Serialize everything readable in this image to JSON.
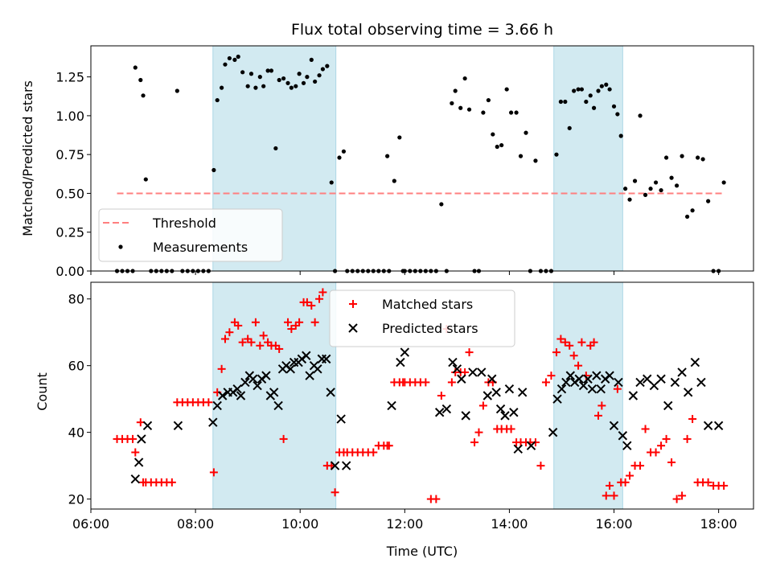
{
  "chart_data": [
    {
      "type": "scatter",
      "title": "Flux total observing time = 3.66 h",
      "xlabel": "",
      "ylabel": "Matched/Predicted stars",
      "xlim": [
        "06:00",
        "18:40"
      ],
      "ylim": [
        0,
        1.45
      ],
      "yticks": [
        "0.00",
        "0.25",
        "0.50",
        "0.75",
        "1.00",
        "1.25"
      ],
      "xticks": [
        "06:00",
        "08:00",
        "10:00",
        "12:00",
        "14:00",
        "16:00",
        "18:00"
      ],
      "show_xtick_labels": false,
      "shaded_intervals": [
        [
          "08:20",
          "10:41"
        ],
        [
          "14:51",
          "16:10"
        ]
      ],
      "shade_color": "#add8e6",
      "legend": {
        "position": "lower-left",
        "entries": [
          "Threshold",
          "Measurements"
        ]
      },
      "series": [
        {
          "name": "Threshold",
          "kind": "dashed-line",
          "color": "#ff7f7f",
          "x": [
            "06:30",
            "18:05"
          ],
          "y": [
            0.5,
            0.5
          ]
        },
        {
          "name": "Measurements",
          "kind": "dots",
          "color": "#000000",
          "x": [
            "06:30",
            "06:36",
            "06:42",
            "06:48",
            "06:51",
            "06:57",
            "07:00",
            "07:03",
            "07:09",
            "07:15",
            "07:21",
            "07:27",
            "07:33",
            "07:39",
            "07:45",
            "07:51",
            "07:57",
            "08:03",
            "08:09",
            "08:15",
            "08:21",
            "08:25",
            "08:30",
            "08:34",
            "08:39",
            "08:45",
            "08:49",
            "08:54",
            "09:00",
            "09:04",
            "09:09",
            "09:14",
            "09:18",
            "09:23",
            "09:27",
            "09:32",
            "09:36",
            "09:41",
            "09:46",
            "09:50",
            "09:55",
            "09:59",
            "10:04",
            "10:08",
            "10:13",
            "10:17",
            "10:22",
            "10:26",
            "10:31",
            "10:36",
            "10:40",
            "10:45",
            "10:50",
            "10:54",
            "11:00",
            "11:06",
            "11:12",
            "11:18",
            "11:24",
            "11:30",
            "11:36",
            "11:40",
            "11:42",
            "11:48",
            "11:54",
            "11:58",
            "12:00",
            "12:06",
            "12:12",
            "12:18",
            "12:24",
            "12:30",
            "12:36",
            "12:42",
            "12:48",
            "12:54",
            "12:58",
            "13:04",
            "13:09",
            "13:14",
            "13:20",
            "13:25",
            "13:30",
            "13:36",
            "13:41",
            "13:46",
            "13:51",
            "13:57",
            "14:02",
            "14:08",
            "14:13",
            "14:19",
            "14:24",
            "14:30",
            "14:36",
            "14:42",
            "14:48",
            "14:54",
            "14:59",
            "15:04",
            "15:09",
            "15:14",
            "15:19",
            "15:23",
            "15:28",
            "15:33",
            "15:37",
            "15:42",
            "15:46",
            "15:51",
            "15:55",
            "16:00",
            "16:04",
            "16:08",
            "16:13",
            "16:18",
            "16:24",
            "16:30",
            "16:36",
            "16:42",
            "16:48",
            "16:54",
            "17:00",
            "17:06",
            "17:12",
            "17:18",
            "17:24",
            "17:30",
            "17:36",
            "17:42",
            "17:48",
            "17:54",
            "18:00",
            "18:06"
          ],
          "y": [
            0,
            0,
            0,
            0,
            1.31,
            1.23,
            1.13,
            0.59,
            0,
            0,
            0,
            0,
            0,
            1.16,
            0,
            0,
            0,
            0,
            0,
            0,
            0.65,
            1.1,
            1.18,
            1.33,
            1.37,
            1.36,
            1.38,
            1.28,
            1.19,
            1.27,
            1.18,
            1.25,
            1.19,
            1.29,
            1.29,
            0.79,
            1.23,
            1.24,
            1.21,
            1.18,
            1.19,
            1.27,
            1.21,
            1.25,
            1.36,
            1.22,
            1.26,
            1.3,
            1.32,
            0.57,
            0,
            0.73,
            0.77,
            0,
            0,
            0,
            0,
            0,
            0,
            0,
            0,
            0.74,
            0,
            0.58,
            0.86,
            0,
            0,
            0,
            0,
            0,
            0,
            0,
            0,
            0.43,
            0,
            1.08,
            1.16,
            1.05,
            1.24,
            1.04,
            0,
            0,
            1.02,
            1.1,
            0.88,
            0.8,
            0.81,
            1.17,
            1.02,
            1.02,
            0.74,
            0.89,
            0,
            0.71,
            0,
            0,
            0,
            0.75,
            1.09,
            1.09,
            0.92,
            1.16,
            1.17,
            1.17,
            1.09,
            1.13,
            1.05,
            1.16,
            1.19,
            1.2,
            1.17,
            1.06,
            1.01,
            0.87,
            0.53,
            0.46,
            0.58,
            1.0,
            0.49,
            0.53,
            0.57,
            0.52,
            0.73,
            0.6,
            0.55,
            0.74,
            0.35,
            0.39,
            0.73,
            0.72,
            0.45,
            0,
            0,
            0.57
          ]
        }
      ]
    },
    {
      "type": "scatter",
      "title": "",
      "xlabel": "Time (UTC)",
      "ylabel": "Count",
      "xlim": [
        "06:00",
        "18:40"
      ],
      "ylim": [
        17,
        85
      ],
      "yticks": [
        "20",
        "40",
        "60",
        "80"
      ],
      "xticks": [
        "06:00",
        "08:00",
        "10:00",
        "12:00",
        "14:00",
        "16:00",
        "18:00"
      ],
      "show_xtick_labels": true,
      "shaded_intervals": [
        [
          "08:20",
          "10:41"
        ],
        [
          "14:51",
          "16:10"
        ]
      ],
      "shade_color": "#add8e6",
      "legend": {
        "position": "upper-center",
        "entries": [
          "Matched stars",
          "Predicted stars"
        ]
      },
      "series": [
        {
          "name": "Matched stars",
          "marker": "plus",
          "color": "#ff0000",
          "x": [
            "06:30",
            "06:36",
            "06:42",
            "06:48",
            "06:51",
            "06:57",
            "07:00",
            "07:03",
            "07:09",
            "07:15",
            "07:21",
            "07:27",
            "07:33",
            "07:39",
            "07:45",
            "07:51",
            "07:57",
            "08:03",
            "08:09",
            "08:15",
            "08:21",
            "08:25",
            "08:30",
            "08:34",
            "08:39",
            "08:45",
            "08:49",
            "08:54",
            "09:00",
            "09:04",
            "09:09",
            "09:14",
            "09:18",
            "09:23",
            "09:27",
            "09:32",
            "09:36",
            "09:41",
            "09:46",
            "09:50",
            "09:55",
            "09:59",
            "10:04",
            "10:08",
            "10:13",
            "10:17",
            "10:22",
            "10:26",
            "10:31",
            "10:36",
            "10:40",
            "10:45",
            "10:50",
            "10:54",
            "11:00",
            "11:06",
            "11:12",
            "11:18",
            "11:24",
            "11:30",
            "11:36",
            "11:40",
            "11:42",
            "11:48",
            "11:54",
            "11:58",
            "12:00",
            "12:06",
            "12:12",
            "12:18",
            "12:24",
            "12:30",
            "12:36",
            "12:42",
            "12:48",
            "12:54",
            "12:58",
            "13:04",
            "13:09",
            "13:14",
            "13:20",
            "13:25",
            "13:30",
            "13:36",
            "13:41",
            "13:46",
            "13:51",
            "13:57",
            "14:02",
            "14:08",
            "14:13",
            "14:19",
            "14:24",
            "14:30",
            "14:36",
            "14:42",
            "14:48",
            "14:54",
            "14:59",
            "15:04",
            "15:09",
            "15:14",
            "15:19",
            "15:23",
            "15:28",
            "15:33",
            "15:37",
            "15:42",
            "15:46",
            "15:51",
            "15:55",
            "16:00",
            "16:04",
            "16:08",
            "16:13",
            "16:18",
            "16:24",
            "16:30",
            "16:36",
            "16:42",
            "16:48",
            "16:54",
            "17:00",
            "17:06",
            "17:12",
            "17:18",
            "17:24",
            "17:30",
            "17:36",
            "17:42",
            "17:48",
            "17:54",
            "18:00",
            "18:06"
          ],
          "y": [
            38,
            38,
            38,
            38,
            34,
            43,
            25,
            25,
            25,
            25,
            25,
            25,
            25,
            49,
            49,
            49,
            49,
            49,
            49,
            49,
            28,
            52,
            59,
            68,
            70,
            73,
            72,
            67,
            68,
            67,
            73,
            66,
            69,
            67,
            66,
            66,
            65,
            38,
            73,
            71,
            72,
            73,
            79,
            79,
            78,
            73,
            80,
            82,
            30,
            30,
            22,
            34,
            34,
            34,
            34,
            34,
            34,
            34,
            34,
            36,
            36,
            36,
            36,
            55,
            55,
            55,
            55,
            55,
            55,
            55,
            55,
            20,
            20,
            51,
            71,
            55,
            58,
            58,
            58,
            64,
            37,
            40,
            48,
            55,
            55,
            41,
            41,
            41,
            41,
            37,
            37,
            37,
            37,
            37,
            30,
            55,
            57,
            64,
            68,
            67,
            66,
            63,
            60,
            67,
            57,
            66,
            67,
            45,
            48,
            21,
            24,
            21,
            53,
            25,
            25,
            27,
            30,
            30,
            41,
            34,
            34,
            36,
            38,
            31,
            20,
            21,
            38,
            44,
            25,
            25,
            25,
            24,
            24,
            24
          ]
        },
        {
          "name": "Predicted stars",
          "marker": "x",
          "color": "#000000",
          "x": [
            "06:51",
            "06:55",
            "06:58",
            "07:05",
            "07:40",
            "08:20",
            "08:25",
            "08:31",
            "08:37",
            "08:43",
            "08:48",
            "08:52",
            "08:57",
            "09:02",
            "09:06",
            "09:11",
            "09:16",
            "09:21",
            "09:26",
            "09:30",
            "09:35",
            "09:40",
            "09:44",
            "09:49",
            "09:53",
            "09:58",
            "10:02",
            "10:07",
            "10:11",
            "10:16",
            "10:20",
            "10:25",
            "10:30",
            "10:35",
            "10:40",
            "10:47",
            "10:53",
            "11:45",
            "11:55",
            "12:00",
            "12:40",
            "12:48",
            "12:55",
            "13:00",
            "13:05",
            "13:10",
            "13:18",
            "13:28",
            "13:35",
            "13:40",
            "13:45",
            "13:50",
            "13:55",
            "14:00",
            "14:05",
            "14:10",
            "14:15",
            "14:25",
            "14:50",
            "14:55",
            "15:00",
            "15:05",
            "15:10",
            "15:15",
            "15:20",
            "15:25",
            "15:30",
            "15:35",
            "15:40",
            "15:45",
            "15:50",
            "15:55",
            "16:00",
            "16:05",
            "16:10",
            "16:15",
            "16:22",
            "16:30",
            "16:38",
            "16:46",
            "16:54",
            "17:02",
            "17:10",
            "17:18",
            "17:25",
            "17:33",
            "17:40",
            "17:48",
            "18:00"
          ],
          "y": [
            26,
            31,
            38,
            42,
            42,
            43,
            48,
            51,
            52,
            52,
            53,
            51,
            55,
            57,
            56,
            54,
            56,
            57,
            51,
            52,
            48,
            59,
            60,
            59,
            61,
            61,
            62,
            63,
            57,
            60,
            59,
            62,
            62,
            52,
            30,
            44,
            30,
            48,
            61,
            64,
            46,
            47,
            61,
            59,
            56,
            45,
            58,
            58,
            51,
            56,
            52,
            47,
            45,
            53,
            46,
            35,
            52,
            36,
            40,
            50,
            53,
            55,
            57,
            55,
            56,
            54,
            56,
            53,
            57,
            53,
            56,
            57,
            42,
            55,
            39,
            36,
            51,
            55,
            56,
            54,
            56,
            48,
            55,
            58,
            52,
            61,
            55,
            42,
            42
          ]
        }
      ]
    }
  ]
}
